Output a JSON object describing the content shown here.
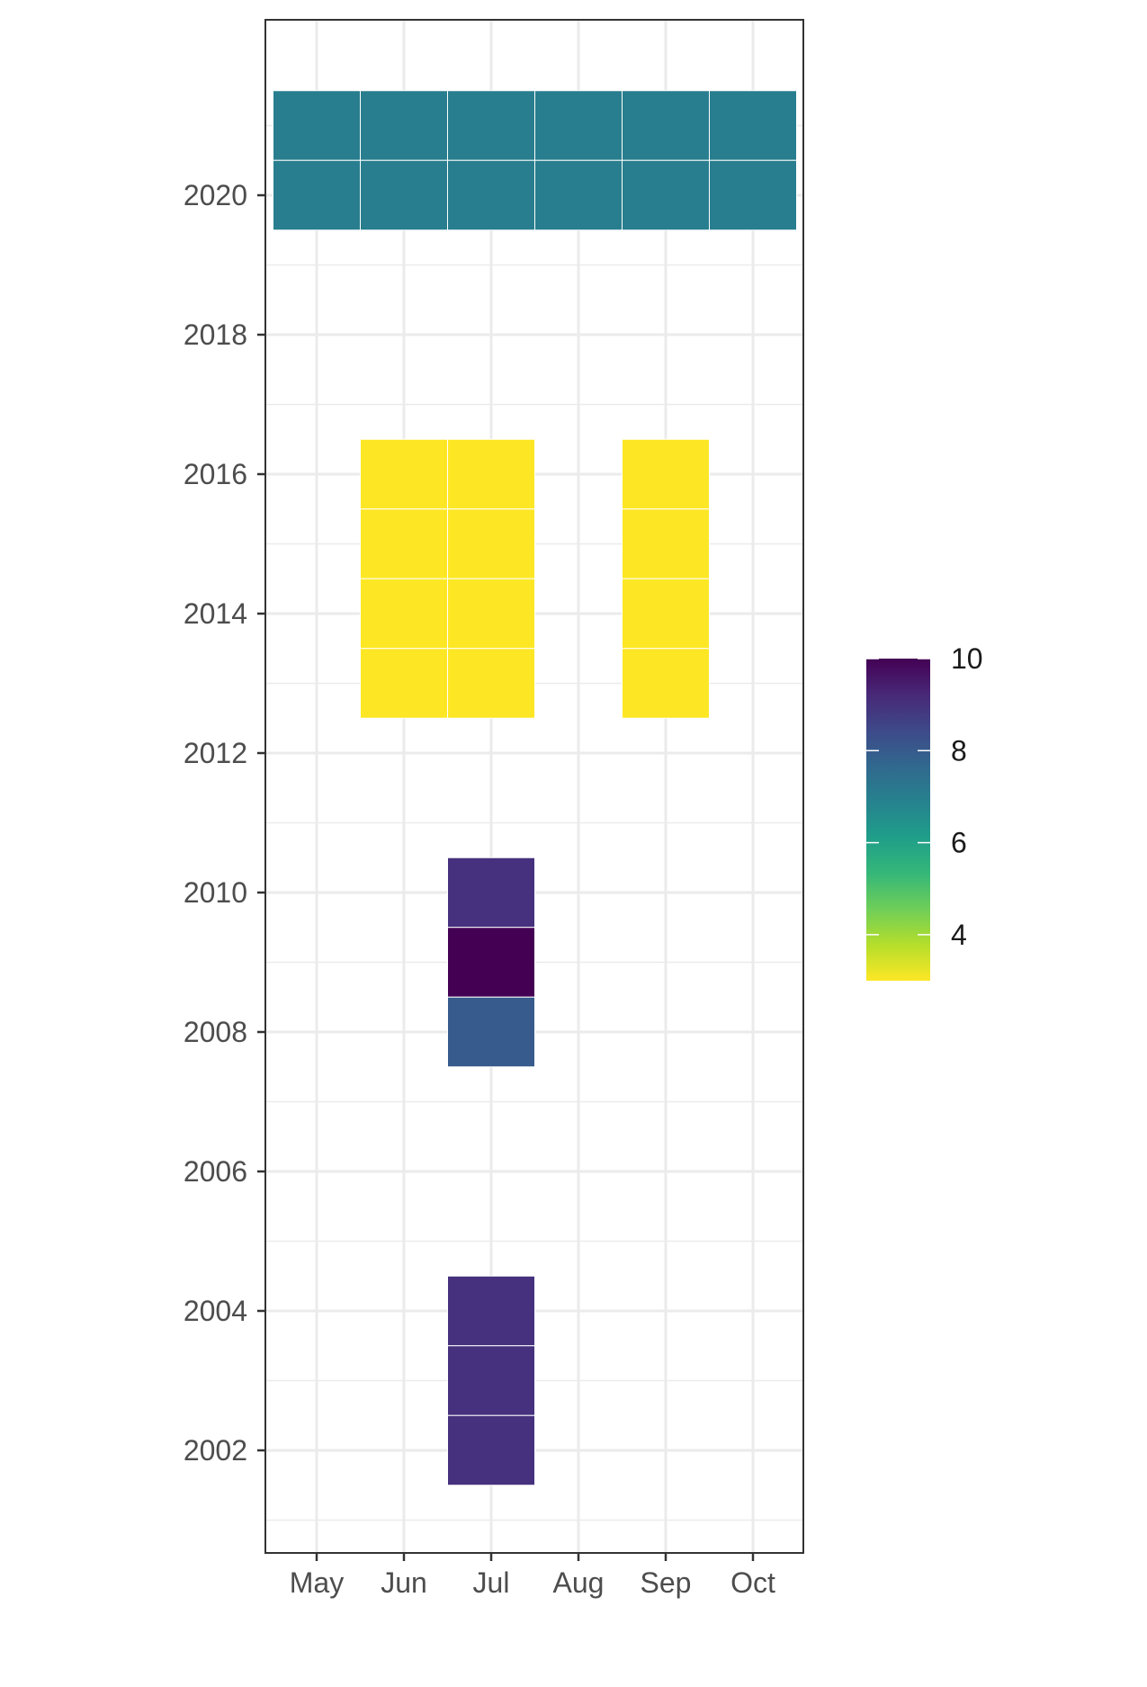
{
  "chart_data": {
    "type": "heatmap",
    "title": "",
    "xlabel": "",
    "ylabel": "",
    "x_categories": [
      "May",
      "Jun",
      "Jul",
      "Aug",
      "Sep",
      "Oct"
    ],
    "x_ticks": [
      "May",
      "Jun",
      "Jul",
      "Aug",
      "Sep",
      "Oct"
    ],
    "y_ticks": [
      2002,
      2004,
      2006,
      2008,
      2010,
      2012,
      2014,
      2016,
      2018,
      2020
    ],
    "ylim": [
      2000.5,
      2022.5
    ],
    "grid": true,
    "cells": [
      {
        "year": 2021,
        "month": "May",
        "value": 7
      },
      {
        "year": 2021,
        "month": "Jun",
        "value": 7
      },
      {
        "year": 2021,
        "month": "Jul",
        "value": 7
      },
      {
        "year": 2021,
        "month": "Aug",
        "value": 7
      },
      {
        "year": 2021,
        "month": "Sep",
        "value": 7
      },
      {
        "year": 2021,
        "month": "Oct",
        "value": 7
      },
      {
        "year": 2020,
        "month": "May",
        "value": 7
      },
      {
        "year": 2020,
        "month": "Jun",
        "value": 7
      },
      {
        "year": 2020,
        "month": "Jul",
        "value": 7
      },
      {
        "year": 2020,
        "month": "Aug",
        "value": 7
      },
      {
        "year": 2020,
        "month": "Sep",
        "value": 7
      },
      {
        "year": 2020,
        "month": "Oct",
        "value": 7
      },
      {
        "year": 2016,
        "month": "Jun",
        "value": 3
      },
      {
        "year": 2016,
        "month": "Jul",
        "value": 3
      },
      {
        "year": 2016,
        "month": "Sep",
        "value": 3
      },
      {
        "year": 2015,
        "month": "Jun",
        "value": 3
      },
      {
        "year": 2015,
        "month": "Jul",
        "value": 3
      },
      {
        "year": 2015,
        "month": "Sep",
        "value": 3
      },
      {
        "year": 2014,
        "month": "Jun",
        "value": 3
      },
      {
        "year": 2014,
        "month": "Jul",
        "value": 3
      },
      {
        "year": 2014,
        "month": "Sep",
        "value": 3
      },
      {
        "year": 2013,
        "month": "Jun",
        "value": 3
      },
      {
        "year": 2013,
        "month": "Jul",
        "value": 3
      },
      {
        "year": 2013,
        "month": "Sep",
        "value": 3
      },
      {
        "year": 2010,
        "month": "Jul",
        "value": 9
      },
      {
        "year": 2009,
        "month": "Jul",
        "value": 10
      },
      {
        "year": 2008,
        "month": "Jul",
        "value": 8
      },
      {
        "year": 2004,
        "month": "Jul",
        "value": 9
      },
      {
        "year": 2003,
        "month": "Jul",
        "value": 9
      },
      {
        "year": 2002,
        "month": "Jul",
        "value": 9
      }
    ],
    "legend": {
      "position": "right",
      "range": [
        3,
        10
      ],
      "ticks": [
        4,
        6,
        8,
        10
      ],
      "colormap": "viridis",
      "colors": [
        "#440154",
        "#482878",
        "#3e4989",
        "#31688e",
        "#26828e",
        "#1f9e89",
        "#35b779",
        "#6ece58",
        "#b5de2b",
        "#fde725"
      ]
    }
  }
}
